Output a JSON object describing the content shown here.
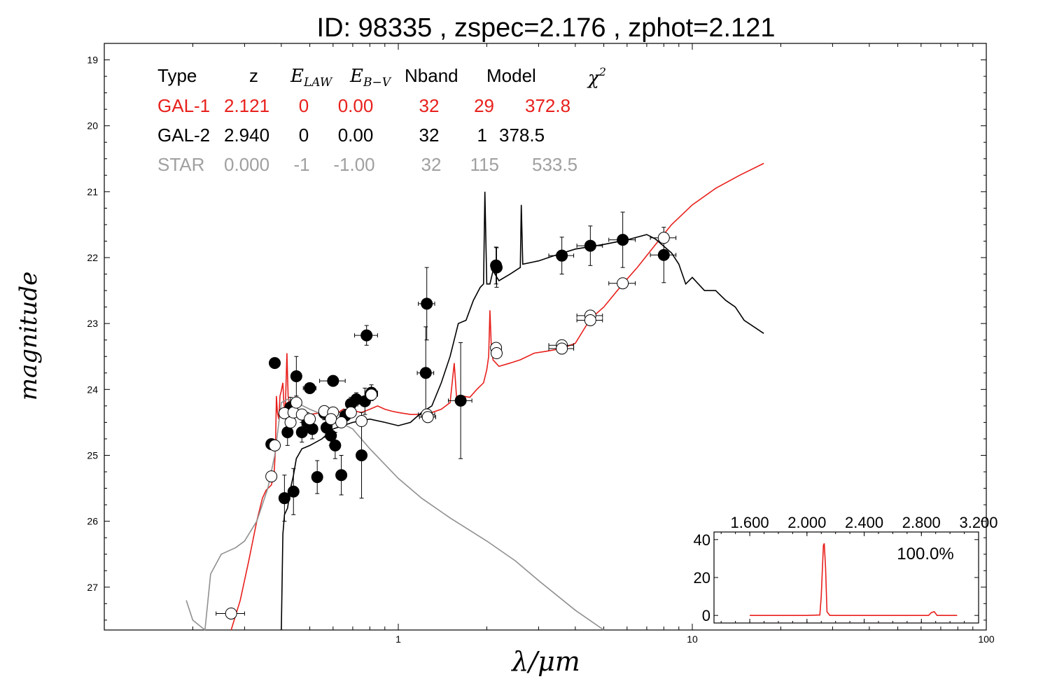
{
  "chart_data": {
    "type": "scatter",
    "title": "ID:  98335 , zspec=2.176 , zphot=2.121",
    "xlabel": "λ/μm",
    "ylabel": "magnitude",
    "x_scale": "log",
    "xlim": [
      0.1,
      100
    ],
    "ylim": [
      27.65,
      18.75
    ],
    "x_ticks": [
      1,
      10,
      100
    ],
    "x_tick_labels": [
      "1",
      "10",
      "100"
    ],
    "y_ticks": [
      19,
      20,
      21,
      22,
      23,
      24,
      25,
      26,
      27
    ],
    "y_tick_labels": [
      "19",
      "20",
      "21",
      "22",
      "23",
      "24",
      "25",
      "26",
      "27"
    ],
    "colors": {
      "gal1": "#e8201c",
      "gal2": "#000000",
      "star": "#909090"
    },
    "fit_table": {
      "headers": [
        "Type",
        "z",
        "E_LAW",
        "E_B−V",
        "Nband",
        "Model",
        "χ²"
      ],
      "rows": [
        {
          "type": "GAL-1",
          "z": "2.121",
          "elaw": "0",
          "ebv": "0.00",
          "nband": "32",
          "model": "29",
          "chi2": "372.8",
          "color": "#e8201c"
        },
        {
          "type": "GAL-2",
          "z": "2.940",
          "elaw": "0",
          "ebv": "0.00",
          "nband": "32",
          "model": "1",
          "chi2": "378.5",
          "color": "#000000"
        },
        {
          "type": "STAR",
          "z": "0.000",
          "elaw": "-1",
          "ebv": "-1.00",
          "nband": "32",
          "model": "115",
          "chi2": "533.5",
          "color": "#a0a0a0"
        }
      ]
    },
    "series": [
      {
        "kind": "observed",
        "marker": "filled-circle",
        "points": [
          {
            "x": 0.37,
            "y": 24.83,
            "xerr": 0.012,
            "yerr": 0.08
          },
          {
            "x": 0.38,
            "y": 23.6,
            "xerr": 0.012,
            "yerr": 0.06
          },
          {
            "x": 0.41,
            "y": 25.65,
            "xerr": 0.01,
            "yerr": 0.35
          },
          {
            "x": 0.42,
            "y": 24.65,
            "xerr": 0.012,
            "yerr": 0.2
          },
          {
            "x": 0.43,
            "y": 24.27,
            "xerr": 0.012,
            "yerr": 0.15
          },
          {
            "x": 0.44,
            "y": 25.55,
            "xerr": 0.01,
            "yerr": 0.35
          },
          {
            "x": 0.45,
            "y": 23.8,
            "xerr": 0.012,
            "yerr": 0.3
          },
          {
            "x": 0.47,
            "y": 24.65,
            "xerr": 0.012,
            "yerr": 0.15
          },
          {
            "x": 0.49,
            "y": 24.5,
            "xerr": 0.015,
            "yerr": 0.15
          },
          {
            "x": 0.5,
            "y": 23.98,
            "xerr": 0.025,
            "yerr": 0.08
          },
          {
            "x": 0.51,
            "y": 24.6,
            "xerr": 0.015,
            "yerr": 0.15
          },
          {
            "x": 0.53,
            "y": 25.33,
            "xerr": 0.015,
            "yerr": 0.25
          },
          {
            "x": 0.56,
            "y": 24.36,
            "xerr": 0.015,
            "yerr": 0.1
          },
          {
            "x": 0.57,
            "y": 24.58,
            "xerr": 0.015,
            "yerr": 0.15
          },
          {
            "x": 0.59,
            "y": 24.7,
            "xerr": 0.015,
            "yerr": 0.15
          },
          {
            "x": 0.6,
            "y": 23.87,
            "xerr": 0.06,
            "yerr": 0.08
          },
          {
            "x": 0.61,
            "y": 24.85,
            "xerr": 0.015,
            "yerr": 0.2
          },
          {
            "x": 0.64,
            "y": 25.3,
            "xerr": 0.015,
            "yerr": 0.3
          },
          {
            "x": 0.66,
            "y": 24.4,
            "xerr": 0.02,
            "yerr": 0.1
          },
          {
            "x": 0.69,
            "y": 24.22,
            "xerr": 0.02,
            "yerr": 0.1
          },
          {
            "x": 0.72,
            "y": 24.15,
            "xerr": 0.02,
            "yerr": 0.1
          },
          {
            "x": 0.75,
            "y": 25.0,
            "xerr": 0.02,
            "yerr": 0.65
          },
          {
            "x": 0.77,
            "y": 24.18,
            "xerr": 0.02,
            "yerr": 0.2
          },
          {
            "x": 0.78,
            "y": 23.18,
            "xerr": 0.07,
            "yerr": 0.15
          },
          {
            "x": 0.81,
            "y": 24.05,
            "xerr": 0.04,
            "yerr": 0.12
          },
          {
            "x": 1.25,
            "y": 22.7,
            "xerr": 0.08,
            "yerr": 0.55
          },
          {
            "x": 1.24,
            "y": 23.75,
            "xerr": 0.08,
            "yerr": 0.7
          },
          {
            "x": 1.63,
            "y": 24.17,
            "xerr": 0.15,
            "yerr": 0.88
          },
          {
            "x": 2.15,
            "y": 22.12,
            "xerr": 0.05,
            "yerr": 0.28
          },
          {
            "x": 2.16,
            "y": 22.15,
            "xerr": 0.05,
            "yerr": 0.3
          },
          {
            "x": 3.6,
            "y": 21.97,
            "xerr": 0.35,
            "yerr": 0.28
          },
          {
            "x": 4.5,
            "y": 21.82,
            "xerr": 0.45,
            "yerr": 0.3
          },
          {
            "x": 5.8,
            "y": 21.73,
            "xerr": 0.6,
            "yerr": 0.42
          },
          {
            "x": 8.0,
            "y": 21.96,
            "xerr": 0.8,
            "yerr": 0.42
          }
        ]
      },
      {
        "kind": "model_mag",
        "marker": "open-circle",
        "points": [
          {
            "x": 0.27,
            "y": 27.4,
            "xerr": 0.03,
            "yerr": 0.05
          },
          {
            "x": 0.37,
            "y": 25.32,
            "xerr": 0.012,
            "yerr": 0.05
          },
          {
            "x": 0.38,
            "y": 24.85,
            "xerr": 0.012,
            "yerr": 0.05
          },
          {
            "x": 0.41,
            "y": 24.36,
            "xerr": 0.012,
            "yerr": 0.05
          },
          {
            "x": 0.43,
            "y": 24.5,
            "xerr": 0.012,
            "yerr": 0.05
          },
          {
            "x": 0.44,
            "y": 24.35,
            "xerr": 0.012,
            "yerr": 0.05
          },
          {
            "x": 0.45,
            "y": 24.2,
            "xerr": 0.012,
            "yerr": 0.05
          },
          {
            "x": 0.47,
            "y": 24.38,
            "xerr": 0.012,
            "yerr": 0.05
          },
          {
            "x": 0.5,
            "y": 24.45,
            "xerr": 0.015,
            "yerr": 0.05
          },
          {
            "x": 0.56,
            "y": 24.33,
            "xerr": 0.015,
            "yerr": 0.05
          },
          {
            "x": 0.6,
            "y": 24.35,
            "xerr": 0.06,
            "yerr": 0.05
          },
          {
            "x": 0.59,
            "y": 24.45,
            "xerr": 0.015,
            "yerr": 0.05
          },
          {
            "x": 0.64,
            "y": 24.5,
            "xerr": 0.015,
            "yerr": 0.05
          },
          {
            "x": 0.69,
            "y": 24.35,
            "xerr": 0.02,
            "yerr": 0.05
          },
          {
            "x": 0.75,
            "y": 24.48,
            "xerr": 0.02,
            "yerr": 0.05
          },
          {
            "x": 0.81,
            "y": 24.08,
            "xerr": 0.04,
            "yerr": 0.05
          },
          {
            "x": 1.25,
            "y": 24.38,
            "xerr": 0.08,
            "yerr": 0.05
          },
          {
            "x": 1.26,
            "y": 24.42,
            "xerr": 0.08,
            "yerr": 0.05
          },
          {
            "x": 2.15,
            "y": 23.37,
            "xerr": 0.05,
            "yerr": 0.05
          },
          {
            "x": 2.16,
            "y": 23.45,
            "xerr": 0.05,
            "yerr": 0.05
          },
          {
            "x": 3.6,
            "y": 23.33,
            "xerr": 0.35,
            "yerr": 0.05
          },
          {
            "x": 3.6,
            "y": 23.38,
            "xerr": 0.35,
            "yerr": 0.05
          },
          {
            "x": 4.5,
            "y": 22.88,
            "xerr": 0.45,
            "yerr": 0.05
          },
          {
            "x": 4.5,
            "y": 22.95,
            "xerr": 0.45,
            "yerr": 0.05
          },
          {
            "x": 5.8,
            "y": 22.39,
            "xerr": 0.6,
            "yerr": 0.05
          },
          {
            "x": 8.0,
            "y": 21.7,
            "xerr": 0.8,
            "yerr": 0.05
          }
        ]
      },
      {
        "kind": "template",
        "color": "#e8201c",
        "line": [
          [
            0.27,
            28.5
          ],
          [
            0.29,
            27.2
          ],
          [
            0.31,
            26.6
          ],
          [
            0.33,
            26.0
          ],
          [
            0.345,
            25.65
          ],
          [
            0.355,
            25.53
          ],
          [
            0.37,
            25.45
          ],
          [
            0.378,
            25.3
          ],
          [
            0.382,
            24.9
          ],
          [
            0.385,
            24.1
          ],
          [
            0.388,
            24.35
          ],
          [
            0.392,
            24.45
          ],
          [
            0.396,
            24.1
          ],
          [
            0.4,
            24.02
          ],
          [
            0.405,
            23.9
          ],
          [
            0.408,
            24.2
          ],
          [
            0.412,
            24.4
          ],
          [
            0.418,
            23.45
          ],
          [
            0.422,
            24.1
          ],
          [
            0.43,
            24.35
          ],
          [
            0.44,
            24.45
          ],
          [
            0.46,
            24.35
          ],
          [
            0.48,
            24.42
          ],
          [
            0.5,
            24.38
          ],
          [
            0.55,
            24.35
          ],
          [
            0.6,
            24.4
          ],
          [
            0.65,
            24.3
          ],
          [
            0.7,
            24.32
          ],
          [
            0.75,
            24.35
          ],
          [
            0.8,
            24.3
          ],
          [
            0.85,
            24.25
          ],
          [
            0.9,
            24.3
          ],
          [
            0.95,
            24.33
          ],
          [
            1.0,
            24.35
          ],
          [
            1.1,
            24.38
          ],
          [
            1.2,
            24.38
          ],
          [
            1.3,
            24.35
          ],
          [
            1.4,
            24.3
          ],
          [
            1.5,
            24.2
          ],
          [
            1.55,
            23.6
          ],
          [
            1.58,
            24.15
          ],
          [
            1.65,
            24.1
          ],
          [
            1.75,
            24.12
          ],
          [
            1.85,
            24.0
          ],
          [
            1.95,
            23.9
          ],
          [
            2.0,
            23.7
          ],
          [
            2.03,
            23.5
          ],
          [
            2.05,
            22.8
          ],
          [
            2.07,
            23.3
          ],
          [
            2.1,
            23.55
          ],
          [
            2.2,
            23.65
          ],
          [
            2.4,
            23.6
          ],
          [
            2.6,
            23.55
          ],
          [
            2.9,
            23.45
          ],
          [
            3.2,
            23.42
          ],
          [
            3.6,
            23.38
          ],
          [
            4.0,
            23.3
          ],
          [
            4.5,
            22.93
          ],
          [
            5.0,
            22.75
          ],
          [
            5.8,
            22.4
          ],
          [
            6.5,
            22.15
          ],
          [
            7.5,
            21.8
          ],
          [
            8.5,
            21.5
          ],
          [
            10,
            21.2
          ],
          [
            12,
            20.95
          ],
          [
            14.5,
            20.75
          ],
          [
            17.5,
            20.57
          ]
        ]
      },
      {
        "kind": "template",
        "color": "#000000",
        "line": [
          [
            0.4,
            27.7
          ],
          [
            0.405,
            26.2
          ],
          [
            0.41,
            25.9
          ],
          [
            0.42,
            25.8
          ],
          [
            0.43,
            25.5
          ],
          [
            0.44,
            25.3
          ],
          [
            0.45,
            25.05
          ],
          [
            0.47,
            24.9
          ],
          [
            0.5,
            24.85
          ],
          [
            0.55,
            24.75
          ],
          [
            0.6,
            24.6
          ],
          [
            0.7,
            24.5
          ],
          [
            0.8,
            24.45
          ],
          [
            0.9,
            24.5
          ],
          [
            1.0,
            24.55
          ],
          [
            1.1,
            24.5
          ],
          [
            1.2,
            24.35
          ],
          [
            1.3,
            24.25
          ],
          [
            1.4,
            23.9
          ],
          [
            1.5,
            23.5
          ],
          [
            1.6,
            23.0
          ],
          [
            1.7,
            22.95
          ],
          [
            1.8,
            22.65
          ],
          [
            1.9,
            22.45
          ],
          [
            1.95,
            22.4
          ],
          [
            1.97,
            21.0
          ],
          [
            2.0,
            22.4
          ],
          [
            2.05,
            22.4
          ],
          [
            2.1,
            22.2
          ],
          [
            2.2,
            22.35
          ],
          [
            2.4,
            22.25
          ],
          [
            2.6,
            22.15
          ],
          [
            2.62,
            21.2
          ],
          [
            2.65,
            22.1
          ],
          [
            3.0,
            22.05
          ],
          [
            3.5,
            21.95
          ],
          [
            4.0,
            21.87
          ],
          [
            5.0,
            21.8
          ],
          [
            6.0,
            21.73
          ],
          [
            7.0,
            21.65
          ],
          [
            7.5,
            21.72
          ],
          [
            8.5,
            21.93
          ],
          [
            9.0,
            22.1
          ],
          [
            9.5,
            22.4
          ],
          [
            10,
            22.3
          ],
          [
            11,
            22.5
          ],
          [
            12,
            22.5
          ],
          [
            13,
            22.65
          ],
          [
            14,
            22.75
          ],
          [
            15,
            22.95
          ],
          [
            17.5,
            23.15
          ]
        ]
      },
      {
        "kind": "template",
        "color": "#909090",
        "line": [
          [
            0.19,
            27.2
          ],
          [
            0.2,
            27.5
          ],
          [
            0.22,
            27.7
          ],
          [
            0.23,
            26.8
          ],
          [
            0.25,
            26.5
          ],
          [
            0.28,
            26.4
          ],
          [
            0.3,
            26.3
          ],
          [
            0.33,
            26.0
          ],
          [
            0.36,
            25.5
          ],
          [
            0.38,
            25.0
          ],
          [
            0.39,
            24.6
          ],
          [
            0.4,
            24.2
          ],
          [
            0.42,
            24.15
          ],
          [
            0.45,
            24.2
          ],
          [
            0.5,
            24.3
          ],
          [
            0.6,
            24.45
          ],
          [
            0.7,
            24.6
          ],
          [
            0.8,
            24.9
          ],
          [
            1.0,
            25.35
          ],
          [
            1.2,
            25.65
          ],
          [
            1.5,
            25.95
          ],
          [
            2.0,
            26.3
          ],
          [
            2.5,
            26.6
          ],
          [
            3.0,
            26.9
          ],
          [
            4.0,
            27.35
          ],
          [
            5.0,
            27.65
          ]
        ]
      }
    ],
    "inset": {
      "top_ticks": [
        1.6,
        2.0,
        2.4,
        2.8,
        3.2
      ],
      "top_tick_labels": [
        "1.600",
        "2.000",
        "2.400",
        "2.800",
        "3.200"
      ],
      "y_ticks": [
        0,
        20,
        40
      ],
      "y_tick_labels": [
        "0",
        "20",
        "40"
      ],
      "label": "100.0%",
      "pdz": [
        [
          1.6,
          0
        ],
        [
          2.0,
          0
        ],
        [
          2.09,
          0.2
        ],
        [
          2.1,
          10
        ],
        [
          2.115,
          37
        ],
        [
          2.121,
          38
        ],
        [
          2.13,
          25
        ],
        [
          2.14,
          2
        ],
        [
          2.16,
          0
        ],
        [
          2.5,
          0
        ],
        [
          2.85,
          0
        ],
        [
          2.87,
          1.5
        ],
        [
          2.89,
          2
        ],
        [
          2.91,
          0
        ],
        [
          3.05,
          0
        ]
      ],
      "xlim": [
        1.35,
        3.2
      ],
      "ylim": [
        -4,
        44
      ]
    }
  }
}
